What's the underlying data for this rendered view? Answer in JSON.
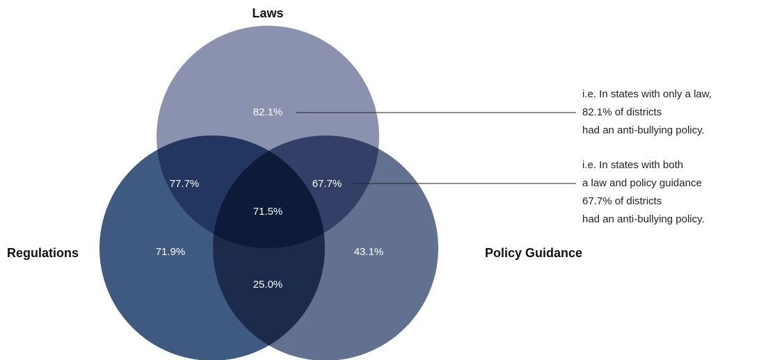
{
  "sets": [
    {
      "label": "Laws"
    },
    {
      "label": "Regulations"
    },
    {
      "label": "Policy Guidance"
    }
  ],
  "regions": [
    {
      "label": "82.1%"
    },
    {
      "label": "77.7%"
    },
    {
      "label": "67.7%"
    },
    {
      "label": "71.5%"
    },
    {
      "label": "71.9%"
    },
    {
      "label": "43.1%"
    },
    {
      "label": "25.0%"
    }
  ],
  "annotations": [
    {
      "lines": [
        "i.e. In states with only a law,",
        "82.1% of districts",
        "had an anti-bullying policy."
      ]
    },
    {
      "lines": [
        "i.e. In states with both",
        "a law and policy guidance",
        "67.7% of districts",
        "had an anti-bullying policy."
      ]
    }
  ]
}
